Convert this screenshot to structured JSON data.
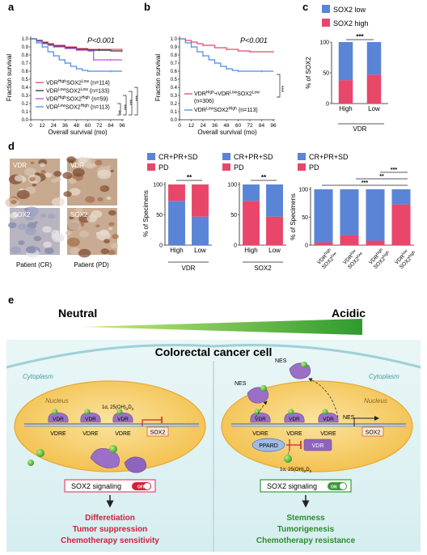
{
  "panels": {
    "a": {
      "letter": "a"
    },
    "b": {
      "letter": "b"
    },
    "c": {
      "letter": "c"
    },
    "d": {
      "letter": "d"
    },
    "e": {
      "letter": "e"
    }
  },
  "panel_a": {
    "pvalue": "P<0.001",
    "ylabel": "Fraction survival",
    "xlabel": "Overall survival (mo)",
    "sig_labels": [
      "***",
      "***",
      "**",
      "***"
    ],
    "legend": [
      {
        "a": "VDR",
        "sa": "High",
        "b": "SOX2",
        "sb": "Low",
        "n": "(n=114)",
        "color": "#e8476a"
      },
      {
        "a": "VDR",
        "sa": "Low",
        "b": "SOX2",
        "sb": "Low",
        "n": "(n=133)",
        "color": "#333333"
      },
      {
        "a": "VDR",
        "sa": "High",
        "b": "SOX2",
        "sb": "High",
        "n": "(n=59)",
        "color": "#b455d6"
      },
      {
        "a": "VDR",
        "sa": "Low",
        "b": "SOX2",
        "sb": "High",
        "n": "(n=113)",
        "color": "#4b8de0"
      }
    ]
  },
  "panel_b": {
    "pvalue": "P<0.001",
    "ylabel": "Fraction survival",
    "xlabel": "Overall survival (mo)",
    "sig": "***",
    "legend1": {
      "a": "VDR",
      "sa": "High",
      "plus": "+VDR",
      "sb": "Low",
      "c": "SOX2",
      "sc": "Low",
      "n": "(n=306)"
    },
    "legend2": {
      "a": "VDR",
      "sa": "Low",
      "b": "SOX2",
      "sb": "High",
      "n": "(n=113)"
    }
  },
  "panel_c": {
    "legend": [
      "SOX2 low",
      "SOX2 high"
    ],
    "ylabel": "% of SOX2",
    "xlabel": "VDR",
    "sig": "***"
  },
  "panel_d": {
    "ihc_labels": [
      "VDR",
      "VDR",
      "SOX2",
      "SOX2"
    ],
    "patients": [
      "Patient (CR)",
      "Patient (PD)"
    ],
    "legend": [
      "CR+PR+SD",
      "PD"
    ],
    "ylabel": "% of Specimens",
    "chart1_xlabel": "VDR",
    "chart2_xlabel": "SOX2",
    "sig1": "**",
    "sig2": "**",
    "sig3": [
      "***",
      "**",
      "***"
    ],
    "cat3": [
      {
        "a": "VDR",
        "sa": "high",
        "b": "SOX2",
        "sb": "low"
      },
      {
        "a": "VDR",
        "sa": "low",
        "b": "SOX2",
        "sb": "low"
      },
      {
        "a": "VDR",
        "sa": "high",
        "b": "SOX2",
        "sb": "high"
      },
      {
        "a": "VDR",
        "sa": "low",
        "b": "SOX2",
        "sb": "high"
      }
    ]
  },
  "panel_e": {
    "neutral": "Neutral",
    "acidic": "Acidic",
    "ph": "pH",
    "title": "Colorectal cancer cell",
    "cytoplasm": "Cytoplasm",
    "nucleus": "Nucleus",
    "vdr": "VDR",
    "vdre": "VDRE",
    "sox2": "SOX2",
    "nes": "NES",
    "pparD": "PPARD",
    "ligand_prefix": "1α, 25(OH)",
    "ligand_sub1": "2",
    "ligand_mid": "D",
    "ligand_sub2": "3",
    "signal_left": "SOX2 signaling",
    "signal_left_state": "OFF",
    "signal_right": "SOX2 signaling",
    "signal_right_state": "ON",
    "outcome_left": [
      "Differetiation",
      "Tumor suppression",
      "Chemotherapy sensitivity"
    ],
    "outcome_right": [
      "Stemness",
      "Tumorigenesis",
      "Chemotherapy resistance"
    ]
  },
  "colors": {
    "red": "#e8476a",
    "blue": "#5a84d6",
    "purple": "#8e6fc2",
    "green": "#3a9a3a",
    "cell": "#f5c85c",
    "pink_text": "#d0213c",
    "green_text": "#2e8b2e"
  },
  "chart_data": [
    {
      "type": "line",
      "panel": "a",
      "title": "",
      "xlabel": "Overall survival (mo)",
      "ylabel": "Fraction survival",
      "xlim": [
        0,
        96
      ],
      "ylim": [
        0,
        1.0
      ],
      "x_ticks": [
        0,
        12,
        24,
        36,
        48,
        60,
        72,
        84,
        96
      ],
      "y_ticks": [
        0,
        0.1,
        0.2,
        0.3,
        0.4,
        0.5,
        0.6,
        0.7,
        0.8,
        0.9,
        1.0
      ],
      "series": [
        {
          "name": "VDRHighSOX2Low (n=114)",
          "x": [
            0,
            6,
            12,
            18,
            24,
            36,
            48,
            60,
            72,
            84,
            96
          ],
          "y": [
            1.0,
            0.98,
            0.96,
            0.94,
            0.92,
            0.9,
            0.88,
            0.87,
            0.87,
            0.87,
            0.87
          ]
        },
        {
          "name": "VDRLowSOX2Low (n=133)",
          "x": [
            0,
            6,
            12,
            18,
            24,
            36,
            48,
            60,
            72,
            84,
            96
          ],
          "y": [
            1.0,
            0.98,
            0.95,
            0.93,
            0.91,
            0.89,
            0.87,
            0.86,
            0.86,
            0.85,
            0.85
          ]
        },
        {
          "name": "VDRHighSOX2High (n=59)",
          "x": [
            0,
            6,
            12,
            18,
            24,
            36,
            48,
            60,
            66,
            72,
            84,
            96
          ],
          "y": [
            1.0,
            0.97,
            0.94,
            0.92,
            0.9,
            0.88,
            0.86,
            0.85,
            0.74,
            0.74,
            0.74,
            0.74
          ]
        },
        {
          "name": "VDRLowSOX2High (n=113)",
          "x": [
            0,
            6,
            12,
            18,
            24,
            30,
            36,
            42,
            48,
            54,
            60,
            72,
            84,
            96
          ],
          "y": [
            1.0,
            0.95,
            0.9,
            0.84,
            0.79,
            0.74,
            0.7,
            0.66,
            0.63,
            0.61,
            0.6,
            0.6,
            0.6,
            0.6
          ]
        }
      ]
    },
    {
      "type": "line",
      "panel": "b",
      "title": "",
      "xlabel": "Overall survival (mo)",
      "ylabel": "Fraction survival",
      "xlim": [
        0,
        96
      ],
      "ylim": [
        0,
        1.0
      ],
      "x_ticks": [
        0,
        12,
        24,
        36,
        48,
        60,
        72,
        84,
        96
      ],
      "y_ticks": [
        0,
        0.1,
        0.2,
        0.3,
        0.4,
        0.5,
        0.6,
        0.7,
        0.8,
        0.9,
        1.0
      ],
      "series": [
        {
          "name": "VDRHigh+VDRLowSOX2Low (n=306)",
          "x": [
            0,
            6,
            12,
            18,
            24,
            36,
            48,
            60,
            72,
            84,
            96
          ],
          "y": [
            1.0,
            0.98,
            0.96,
            0.94,
            0.92,
            0.89,
            0.87,
            0.85,
            0.84,
            0.84,
            0.84
          ]
        },
        {
          "name": "VDRLowSOX2High (n=113)",
          "x": [
            0,
            6,
            12,
            18,
            24,
            30,
            36,
            42,
            48,
            54,
            60,
            72,
            84,
            96
          ],
          "y": [
            1.0,
            0.95,
            0.9,
            0.84,
            0.79,
            0.74,
            0.7,
            0.66,
            0.63,
            0.61,
            0.6,
            0.6,
            0.6,
            0.6
          ]
        }
      ]
    },
    {
      "type": "bar",
      "panel": "c",
      "stacked": true,
      "categories": [
        "High",
        "Low"
      ],
      "xlabel": "VDR",
      "ylabel": "% of SOX2",
      "ylim": [
        0,
        100
      ],
      "y_ticks": [
        0,
        50,
        100
      ],
      "series": [
        {
          "name": "SOX2 high",
          "values": [
            38,
            47
          ],
          "color": "#e8476a"
        },
        {
          "name": "SOX2 low",
          "values": [
            62,
            53
          ],
          "color": "#5a84d6"
        }
      ]
    },
    {
      "type": "bar",
      "panel": "d1",
      "stacked": true,
      "categories": [
        "High",
        "Low"
      ],
      "xlabel": "VDR",
      "ylabel": "% of Specimens",
      "ylim": [
        0,
        100
      ],
      "y_ticks": [
        0,
        50,
        100
      ],
      "series": [
        {
          "name": "CR+PR+SD",
          "values": [
            73,
            47
          ],
          "color": "#5a84d6"
        },
        {
          "name": "PD",
          "values": [
            27,
            53
          ],
          "color": "#e8476a"
        }
      ]
    },
    {
      "type": "bar",
      "panel": "d2",
      "stacked": true,
      "categories": [
        "High",
        "Low"
      ],
      "xlabel": "SOX2",
      "ylabel": "% of Specimens",
      "ylim": [
        0,
        100
      ],
      "y_ticks": [
        0,
        50,
        100
      ],
      "series": [
        {
          "name": "PD",
          "values": [
            73,
            47
          ],
          "color": "#e8476a"
        },
        {
          "name": "CR+PR+SD",
          "values": [
            27,
            53
          ],
          "color": "#5a84d6"
        }
      ]
    },
    {
      "type": "bar",
      "panel": "d3",
      "stacked": true,
      "categories": [
        "VDRhighSOX2low",
        "VDRlowSOX2low",
        "VDRhighSOX2high",
        "VDRlowSOX2high"
      ],
      "ylabel": "% of Specimens",
      "ylim": [
        0,
        100
      ],
      "y_ticks": [
        0,
        50,
        100
      ],
      "series": [
        {
          "name": "PD",
          "values": [
            5,
            18,
            8,
            73
          ],
          "color": "#e8476a"
        },
        {
          "name": "CR+PR+SD",
          "values": [
            95,
            82,
            92,
            27
          ],
          "color": "#5a84d6"
        }
      ]
    }
  ]
}
